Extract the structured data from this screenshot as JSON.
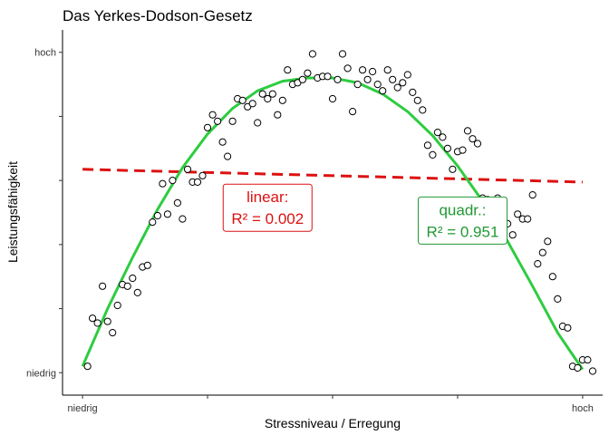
{
  "chart_data": {
    "type": "scatter",
    "title": "Das Yerkes-Dodson-Gesetz",
    "xlabel": "Stressniveau / Erregung",
    "ylabel": "Leistungsfähigkeit",
    "x_ticks": [
      {
        "value": 0,
        "label": "niedrig"
      },
      {
        "value": 0.25,
        "label": ""
      },
      {
        "value": 0.5,
        "label": ""
      },
      {
        "value": 0.75,
        "label": ""
      },
      {
        "value": 1,
        "label": "hoch"
      }
    ],
    "y_ticks": [
      {
        "value": 0,
        "label": "niedrig"
      },
      {
        "value": 0.2,
        "label": ""
      },
      {
        "value": 0.4,
        "label": ""
      },
      {
        "value": 0.6,
        "label": ""
      },
      {
        "value": 0.8,
        "label": ""
      },
      {
        "value": 1,
        "label": "hoch"
      }
    ],
    "xlim": [
      -0.04,
      1.04
    ],
    "ylim": [
      -0.07,
      1.07
    ],
    "grid": false,
    "points": [
      [
        0.01,
        0.02
      ],
      [
        0.02,
        0.17
      ],
      [
        0.03,
        0.155
      ],
      [
        0.04,
        0.27
      ],
      [
        0.05,
        0.16
      ],
      [
        0.06,
        0.125
      ],
      [
        0.07,
        0.21
      ],
      [
        0.08,
        0.275
      ],
      [
        0.09,
        0.27
      ],
      [
        0.1,
        0.295
      ],
      [
        0.11,
        0.25
      ],
      [
        0.12,
        0.33
      ],
      [
        0.13,
        0.335
      ],
      [
        0.14,
        0.47
      ],
      [
        0.15,
        0.49
      ],
      [
        0.16,
        0.59
      ],
      [
        0.17,
        0.495
      ],
      [
        0.18,
        0.6
      ],
      [
        0.19,
        0.53
      ],
      [
        0.2,
        0.48
      ],
      [
        0.21,
        0.635
      ],
      [
        0.22,
        0.595
      ],
      [
        0.23,
        0.595
      ],
      [
        0.24,
        0.615
      ],
      [
        0.25,
        0.765
      ],
      [
        0.26,
        0.805
      ],
      [
        0.27,
        0.785
      ],
      [
        0.28,
        0.72
      ],
      [
        0.29,
        0.675
      ],
      [
        0.3,
        0.785
      ],
      [
        0.31,
        0.855
      ],
      [
        0.32,
        0.85
      ],
      [
        0.33,
        0.83
      ],
      [
        0.34,
        0.84
      ],
      [
        0.35,
        0.78
      ],
      [
        0.36,
        0.87
      ],
      [
        0.37,
        0.855
      ],
      [
        0.38,
        0.87
      ],
      [
        0.39,
        0.805
      ],
      [
        0.4,
        0.85
      ],
      [
        0.41,
        0.945
      ],
      [
        0.42,
        0.9
      ],
      [
        0.43,
        0.905
      ],
      [
        0.44,
        0.915
      ],
      [
        0.45,
        0.935
      ],
      [
        0.46,
        0.995
      ],
      [
        0.47,
        0.92
      ],
      [
        0.48,
        0.925
      ],
      [
        0.49,
        0.925
      ],
      [
        0.5,
        0.855
      ],
      [
        0.51,
        0.915
      ],
      [
        0.52,
        0.995
      ],
      [
        0.53,
        0.95
      ],
      [
        0.54,
        0.815
      ],
      [
        0.55,
        0.9
      ],
      [
        0.56,
        0.945
      ],
      [
        0.57,
        0.915
      ],
      [
        0.58,
        0.94
      ],
      [
        0.59,
        0.9
      ],
      [
        0.6,
        0.88
      ],
      [
        0.61,
        0.945
      ],
      [
        0.62,
        0.915
      ],
      [
        0.63,
        0.89
      ],
      [
        0.64,
        0.905
      ],
      [
        0.65,
        0.93
      ],
      [
        0.66,
        0.875
      ],
      [
        0.67,
        0.85
      ],
      [
        0.68,
        0.82
      ],
      [
        0.69,
        0.71
      ],
      [
        0.7,
        0.68
      ],
      [
        0.71,
        0.75
      ],
      [
        0.72,
        0.735
      ],
      [
        0.73,
        0.7
      ],
      [
        0.74,
        0.635
      ],
      [
        0.75,
        0.69
      ],
      [
        0.76,
        0.695
      ],
      [
        0.77,
        0.755
      ],
      [
        0.78,
        0.73
      ],
      [
        0.79,
        0.715
      ],
      [
        0.8,
        0.545
      ],
      [
        0.81,
        0.54
      ],
      [
        0.82,
        0.53
      ],
      [
        0.83,
        0.545
      ],
      [
        0.84,
        0.48
      ],
      [
        0.85,
        0.465
      ],
      [
        0.86,
        0.43
      ],
      [
        0.87,
        0.495
      ],
      [
        0.88,
        0.48
      ],
      [
        0.89,
        0.48
      ],
      [
        0.9,
        0.555
      ],
      [
        0.91,
        0.34
      ],
      [
        0.92,
        0.375
      ],
      [
        0.93,
        0.41
      ],
      [
        0.94,
        0.3
      ],
      [
        0.95,
        0.23
      ],
      [
        0.96,
        0.145
      ],
      [
        0.97,
        0.14
      ],
      [
        0.98,
        0.02
      ],
      [
        0.99,
        0.015
      ],
      [
        1.0,
        0.04
      ],
      [
        1.01,
        0.04
      ],
      [
        1.02,
        0.005
      ]
    ],
    "series": [
      {
        "name": "linear",
        "type": "line",
        "style": "dashed",
        "color": "#dd1111",
        "x": [
          0,
          1
        ],
        "y": [
          0.635,
          0.595
        ]
      },
      {
        "name": "quadr.",
        "type": "line",
        "style": "solid",
        "color": "#2ecc40",
        "x": [
          0,
          0.05,
          0.1,
          0.15,
          0.2,
          0.25,
          0.3,
          0.35,
          0.4,
          0.45,
          0.5,
          0.55,
          0.6,
          0.65,
          0.7,
          0.75,
          0.8,
          0.85,
          0.9,
          0.95,
          1.0
        ],
        "y": [
          0.02,
          0.2,
          0.36,
          0.51,
          0.64,
          0.745,
          0.825,
          0.88,
          0.91,
          0.92,
          0.92,
          0.905,
          0.87,
          0.815,
          0.74,
          0.645,
          0.535,
          0.41,
          0.27,
          0.125,
          0.01
        ]
      }
    ],
    "annotations": [
      {
        "lines": [
          "linear:",
          "R² = 0.002"
        ],
        "color": "#dd1111",
        "x": 0.37,
        "y": 0.515
      },
      {
        "lines": [
          "quadr.:",
          "R² = 0.951"
        ],
        "color": "#229933",
        "x": 0.76,
        "y": 0.475
      }
    ]
  }
}
